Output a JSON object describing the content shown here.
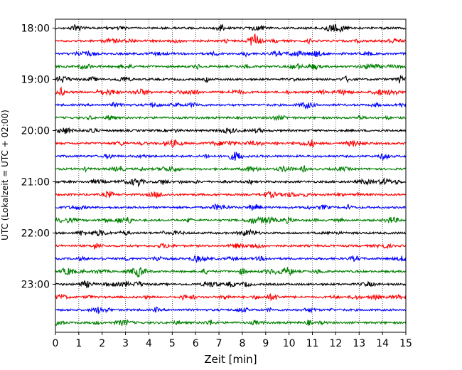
{
  "chart_data": {
    "type": "line",
    "title": "",
    "xlabel": "Zeit  [min]",
    "ylabel": "UTC (Lokalzeit = UTC + 02:00)",
    "xlim": [
      0,
      15
    ],
    "x_ticks": [
      "0",
      "1",
      "2",
      "3",
      "4",
      "5",
      "6",
      "7",
      "8",
      "9",
      "10",
      "11",
      "12",
      "13",
      "14",
      "15"
    ],
    "y_ticks": [
      "18:00",
      "19:00",
      "20:00",
      "21:00",
      "22:00",
      "23:00"
    ],
    "grid": "vertical dotted at each minute",
    "line_interval_minutes": 15,
    "colors": [
      "#000000",
      "#ff0000",
      "#0000ff",
      "#008000"
    ],
    "traces": [
      {
        "start": "18:00",
        "color": "#000000"
      },
      {
        "start": "18:15",
        "color": "#ff0000"
      },
      {
        "start": "18:30",
        "color": "#0000ff"
      },
      {
        "start": "18:45",
        "color": "#008000"
      },
      {
        "start": "19:00",
        "color": "#000000"
      },
      {
        "start": "19:15",
        "color": "#ff0000"
      },
      {
        "start": "19:30",
        "color": "#0000ff"
      },
      {
        "start": "19:45",
        "color": "#008000"
      },
      {
        "start": "20:00",
        "color": "#000000"
      },
      {
        "start": "20:15",
        "color": "#ff0000"
      },
      {
        "start": "20:30",
        "color": "#0000ff"
      },
      {
        "start": "20:45",
        "color": "#008000"
      },
      {
        "start": "21:00",
        "color": "#000000"
      },
      {
        "start": "21:15",
        "color": "#ff0000"
      },
      {
        "start": "21:30",
        "color": "#0000ff"
      },
      {
        "start": "21:45",
        "color": "#008000"
      },
      {
        "start": "22:00",
        "color": "#000000"
      },
      {
        "start": "22:15",
        "color": "#ff0000"
      },
      {
        "start": "22:30",
        "color": "#0000ff"
      },
      {
        "start": "22:45",
        "color": "#008000"
      },
      {
        "start": "23:00",
        "color": "#000000"
      },
      {
        "start": "23:15",
        "color": "#ff0000"
      },
      {
        "start": "23:30",
        "color": "#0000ff"
      },
      {
        "start": "23:45",
        "color": "#008000"
      }
    ]
  }
}
